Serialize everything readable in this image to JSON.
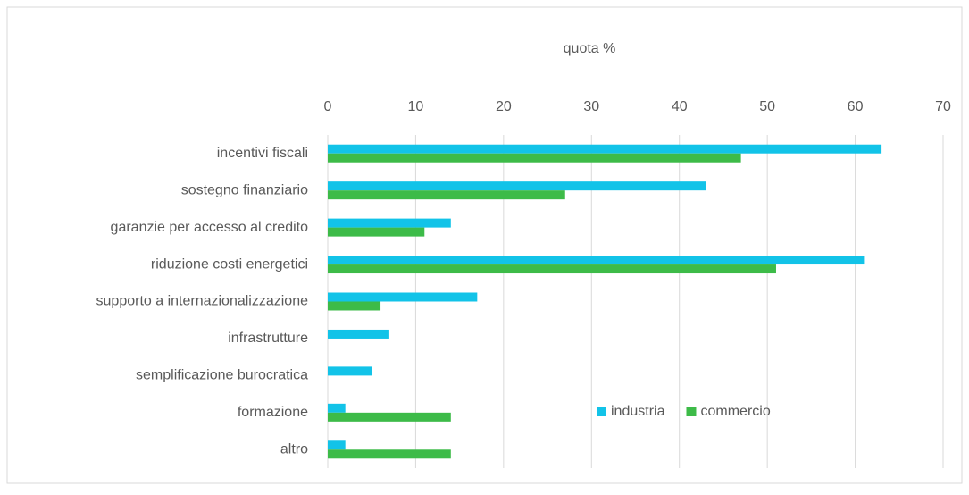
{
  "chart_data": {
    "type": "hbar",
    "title": "quota %",
    "categories": [
      "incentivi fiscali",
      "sostegno finanziario",
      "garanzie per accesso al credito",
      "riduzione costi energetici",
      "supporto a internazionalizzazione",
      "infrastrutture",
      "semplificazione burocratica",
      "formazione",
      "altro"
    ],
    "series": [
      {
        "name": "industria",
        "color": "#12c3e8",
        "values": [
          63,
          43,
          14,
          61,
          17,
          7,
          5,
          2,
          2
        ]
      },
      {
        "name": "commercio",
        "color": "#3dbb48",
        "values": [
          47,
          27,
          11,
          51,
          6,
          0,
          0,
          14,
          14
        ]
      }
    ],
    "xlim": [
      0,
      70
    ],
    "xticks": [
      0,
      10,
      20,
      30,
      40,
      50,
      60,
      70
    ],
    "grid": true,
    "legend": "lower right"
  }
}
